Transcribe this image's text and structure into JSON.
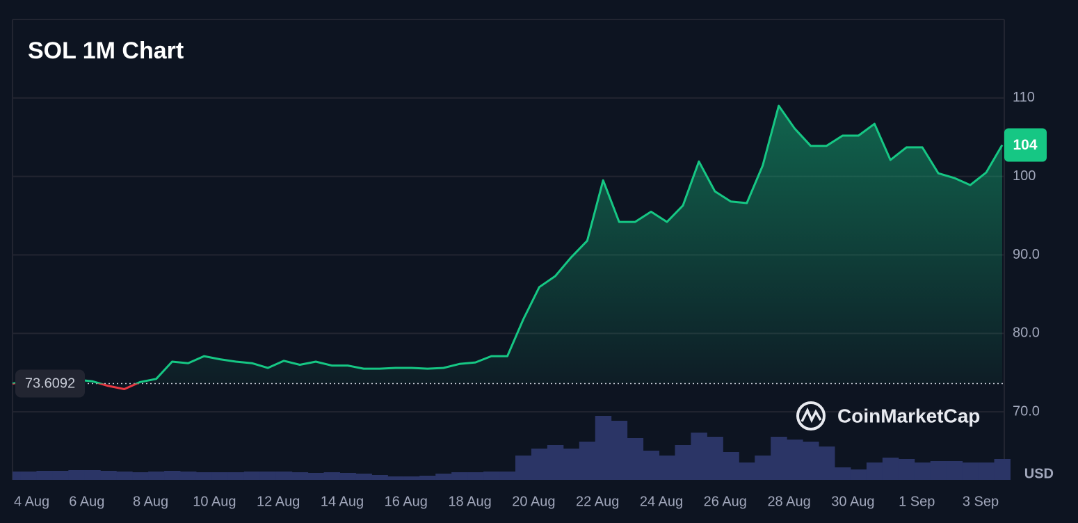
{
  "chart_data": {
    "type": "line",
    "title": "SOL 1M Chart",
    "x_labels": [
      "4 Aug",
      "6 Aug",
      "8 Aug",
      "10 Aug",
      "12 Aug",
      "14 Aug",
      "16 Aug",
      "18 Aug",
      "20 Aug",
      "22 Aug",
      "24 Aug",
      "26 Aug",
      "28 Aug",
      "30 Aug",
      "1 Sep",
      "3 Sep"
    ],
    "values": [
      73.6,
      74.0,
      74.0,
      73.9,
      74.1,
      73.9,
      73.3,
      72.9,
      73.8,
      74.2,
      76.4,
      76.2,
      77.1,
      76.7,
      76.4,
      76.2,
      75.6,
      76.5,
      76.0,
      76.4,
      75.9,
      75.9,
      75.5,
      75.5,
      75.6,
      75.6,
      75.5,
      75.6,
      76.1,
      76.3,
      77.1,
      77.1,
      81.8,
      85.9,
      87.3,
      89.7,
      91.8,
      99.5,
      94.2,
      94.2,
      95.5,
      94.2,
      96.3,
      101.9,
      98.1,
      96.8,
      96.6,
      101.4,
      109.0,
      106.1,
      103.9,
      103.9,
      105.2,
      105.2,
      106.7,
      102.1,
      103.7,
      103.7,
      100.4,
      99.8,
      98.9,
      100.5,
      104.0
    ],
    "volume": [
      12,
      12,
      13,
      13,
      14,
      14,
      13,
      12,
      11,
      12,
      13,
      12,
      11,
      11,
      11,
      12,
      12,
      12,
      11,
      10,
      11,
      10,
      9,
      7,
      5,
      5,
      6,
      9,
      11,
      11,
      12,
      12,
      35,
      45,
      50,
      45,
      55,
      92,
      85,
      60,
      42,
      35,
      50,
      68,
      62,
      40,
      25,
      35,
      62,
      58,
      55,
      48,
      18,
      15,
      25,
      32,
      30,
      25,
      27,
      27,
      25,
      25,
      30
    ],
    "color": "#16c784",
    "down_color": "#ea3943",
    "volume_color": "#2b3566",
    "baseline": 73.6092,
    "last_price": 104,
    "currency": "USD",
    "watermark": "CoinMarketCap",
    "ylim": [
      61.33,
      120
    ],
    "yticks": [
      {
        "value": 70,
        "label": "70.0"
      },
      {
        "value": 80,
        "label": "80.0"
      },
      {
        "value": 90,
        "label": "90.0"
      },
      100,
      110
    ],
    "grid": true
  }
}
